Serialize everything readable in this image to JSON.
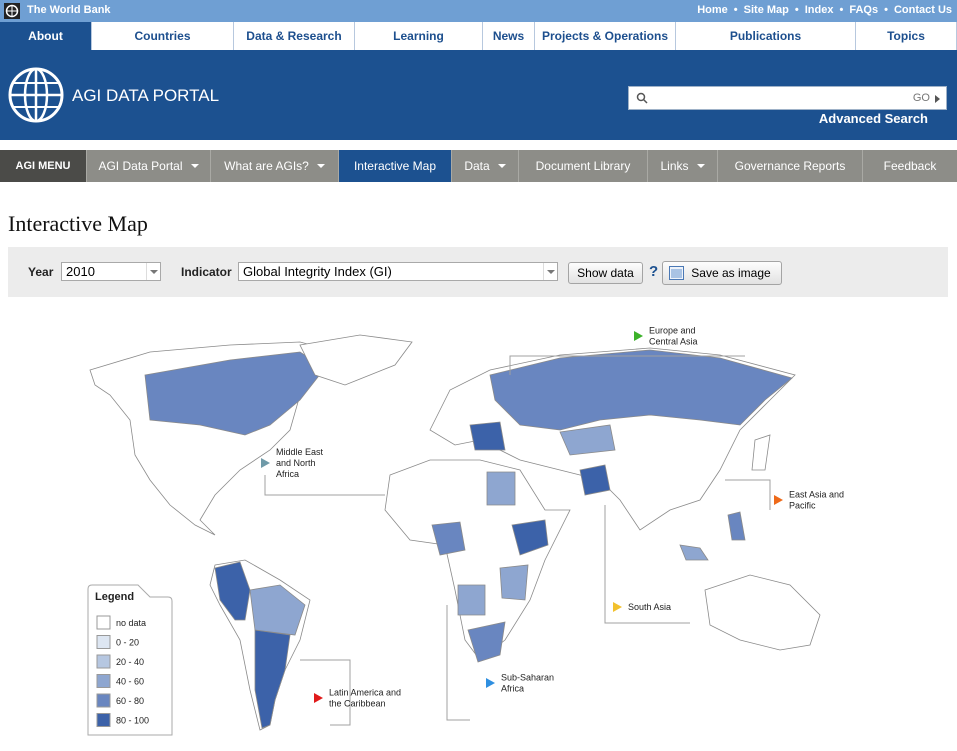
{
  "top_bar": {
    "brand": "The World Bank",
    "links": [
      "Home",
      "Site Map",
      "Index",
      "FAQs",
      "Contact Us"
    ]
  },
  "nav_tabs": [
    {
      "text": "About",
      "active": true
    },
    {
      "text": "Countries"
    },
    {
      "text": "Data & Research"
    },
    {
      "text": "Learning"
    },
    {
      "text": "News"
    },
    {
      "text": "Projects & Operations"
    },
    {
      "text": "Publications"
    },
    {
      "text": "Topics"
    }
  ],
  "header": {
    "title": "AGI DATA PORTAL",
    "search_button": "GO",
    "advanced_search": "Advanced Search"
  },
  "agi_menu": {
    "label": "AGI MENU",
    "items": [
      {
        "text": "AGI Data Portal",
        "dropdown": true
      },
      {
        "text": "What are AGIs?",
        "dropdown": true
      },
      {
        "text": "Interactive Map",
        "active": true
      },
      {
        "text": "Data",
        "dropdown": true
      },
      {
        "text": "Document Library"
      },
      {
        "text": "Links",
        "dropdown": true
      },
      {
        "text": "Governance Reports"
      },
      {
        "text": "Feedback"
      }
    ]
  },
  "page_title": "Interactive Map",
  "controls": {
    "year_label": "Year",
    "year": "2010",
    "indicator_label": "Indicator",
    "indicator": "Global Integrity Index (GI)",
    "show_data": "Show data",
    "help": "?",
    "save_image": "Save as image"
  },
  "map": {
    "regions": [
      {
        "lines": [
          "Europe and",
          "Central Asia"
        ],
        "color": "#3cb22a"
      },
      {
        "lines": [
          "Middle East",
          "and North",
          "Africa"
        ],
        "color": "#6f9aa8"
      },
      {
        "lines": [
          "East Asia and",
          "Pacific"
        ],
        "color": "#ee6a1a"
      },
      {
        "lines": [
          "South Asia"
        ],
        "color": "#f2c12e"
      },
      {
        "lines": [
          "Sub-Saharan",
          "Africa"
        ],
        "color": "#2f8fe0"
      },
      {
        "lines": [
          "Latin America and",
          "the Caribbean"
        ],
        "color": "#e01b1b"
      }
    ],
    "legend": {
      "title": "Legend",
      "items": [
        {
          "label": "no data",
          "color": "#ffffff"
        },
        {
          "label": "0 - 20",
          "color": "#dde6f2"
        },
        {
          "label": "20 - 40",
          "color": "#b6c7e1"
        },
        {
          "label": "40 - 60",
          "color": "#8ea6d0"
        },
        {
          "label": "60 - 80",
          "color": "#6986c0"
        },
        {
          "label": "80 - 100",
          "color": "#3c62a9"
        }
      ]
    }
  }
}
